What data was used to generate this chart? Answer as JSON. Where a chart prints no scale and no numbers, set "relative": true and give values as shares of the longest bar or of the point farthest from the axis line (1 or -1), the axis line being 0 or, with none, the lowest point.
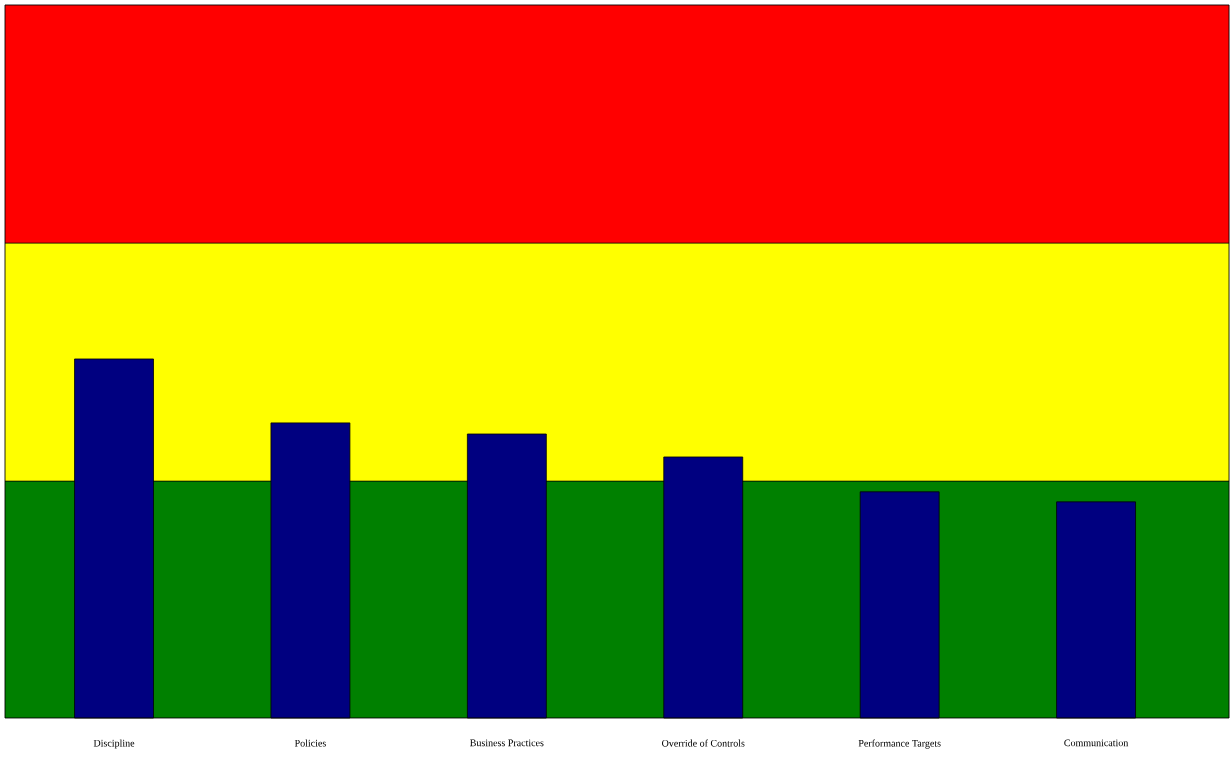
{
  "chart_data": {
    "type": "bar",
    "relative": true,
    "categories": [
      "Discipline",
      "Policies",
      "Business Practices",
      "Override of Controls",
      "Performance Targets",
      "Communication"
    ],
    "values": [
      1,
      0.822,
      0.791,
      0.727,
      0.63,
      0.602
    ],
    "color": "#000080",
    "bands": [
      {
        "axis": "y",
        "from": 0,
        "to": 0.66,
        "color": "#008000"
      },
      {
        "axis": "y",
        "from": 0.66,
        "to": 1.323,
        "color": "#ffff00"
      },
      {
        "axis": "y",
        "from": 1.323,
        "to": 1.986,
        "color": "#ff0000"
      }
    ]
  }
}
